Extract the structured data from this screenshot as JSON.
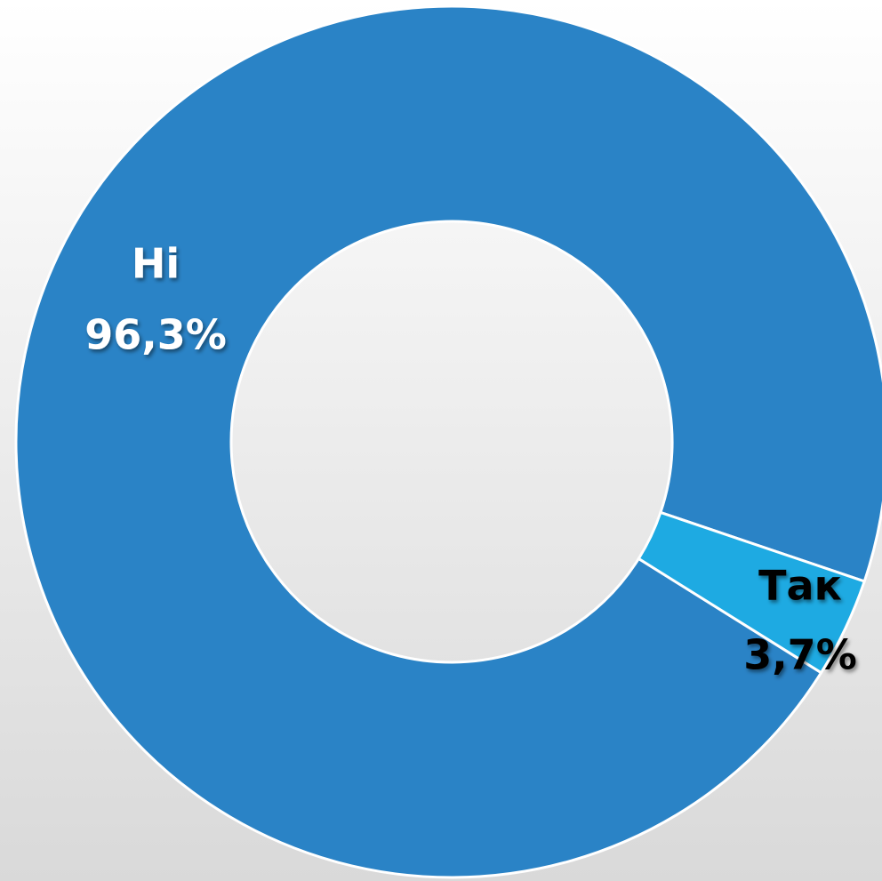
{
  "chart_data": {
    "type": "donut",
    "categories": [
      "Ні",
      "Так"
    ],
    "values": [
      96.3,
      3.7
    ],
    "value_labels": [
      "96,3%",
      "3,7%"
    ],
    "colors": [
      "#2a83c6",
      "#1eaae2"
    ],
    "label_colors": [
      "#ffffff",
      "#000000"
    ]
  }
}
